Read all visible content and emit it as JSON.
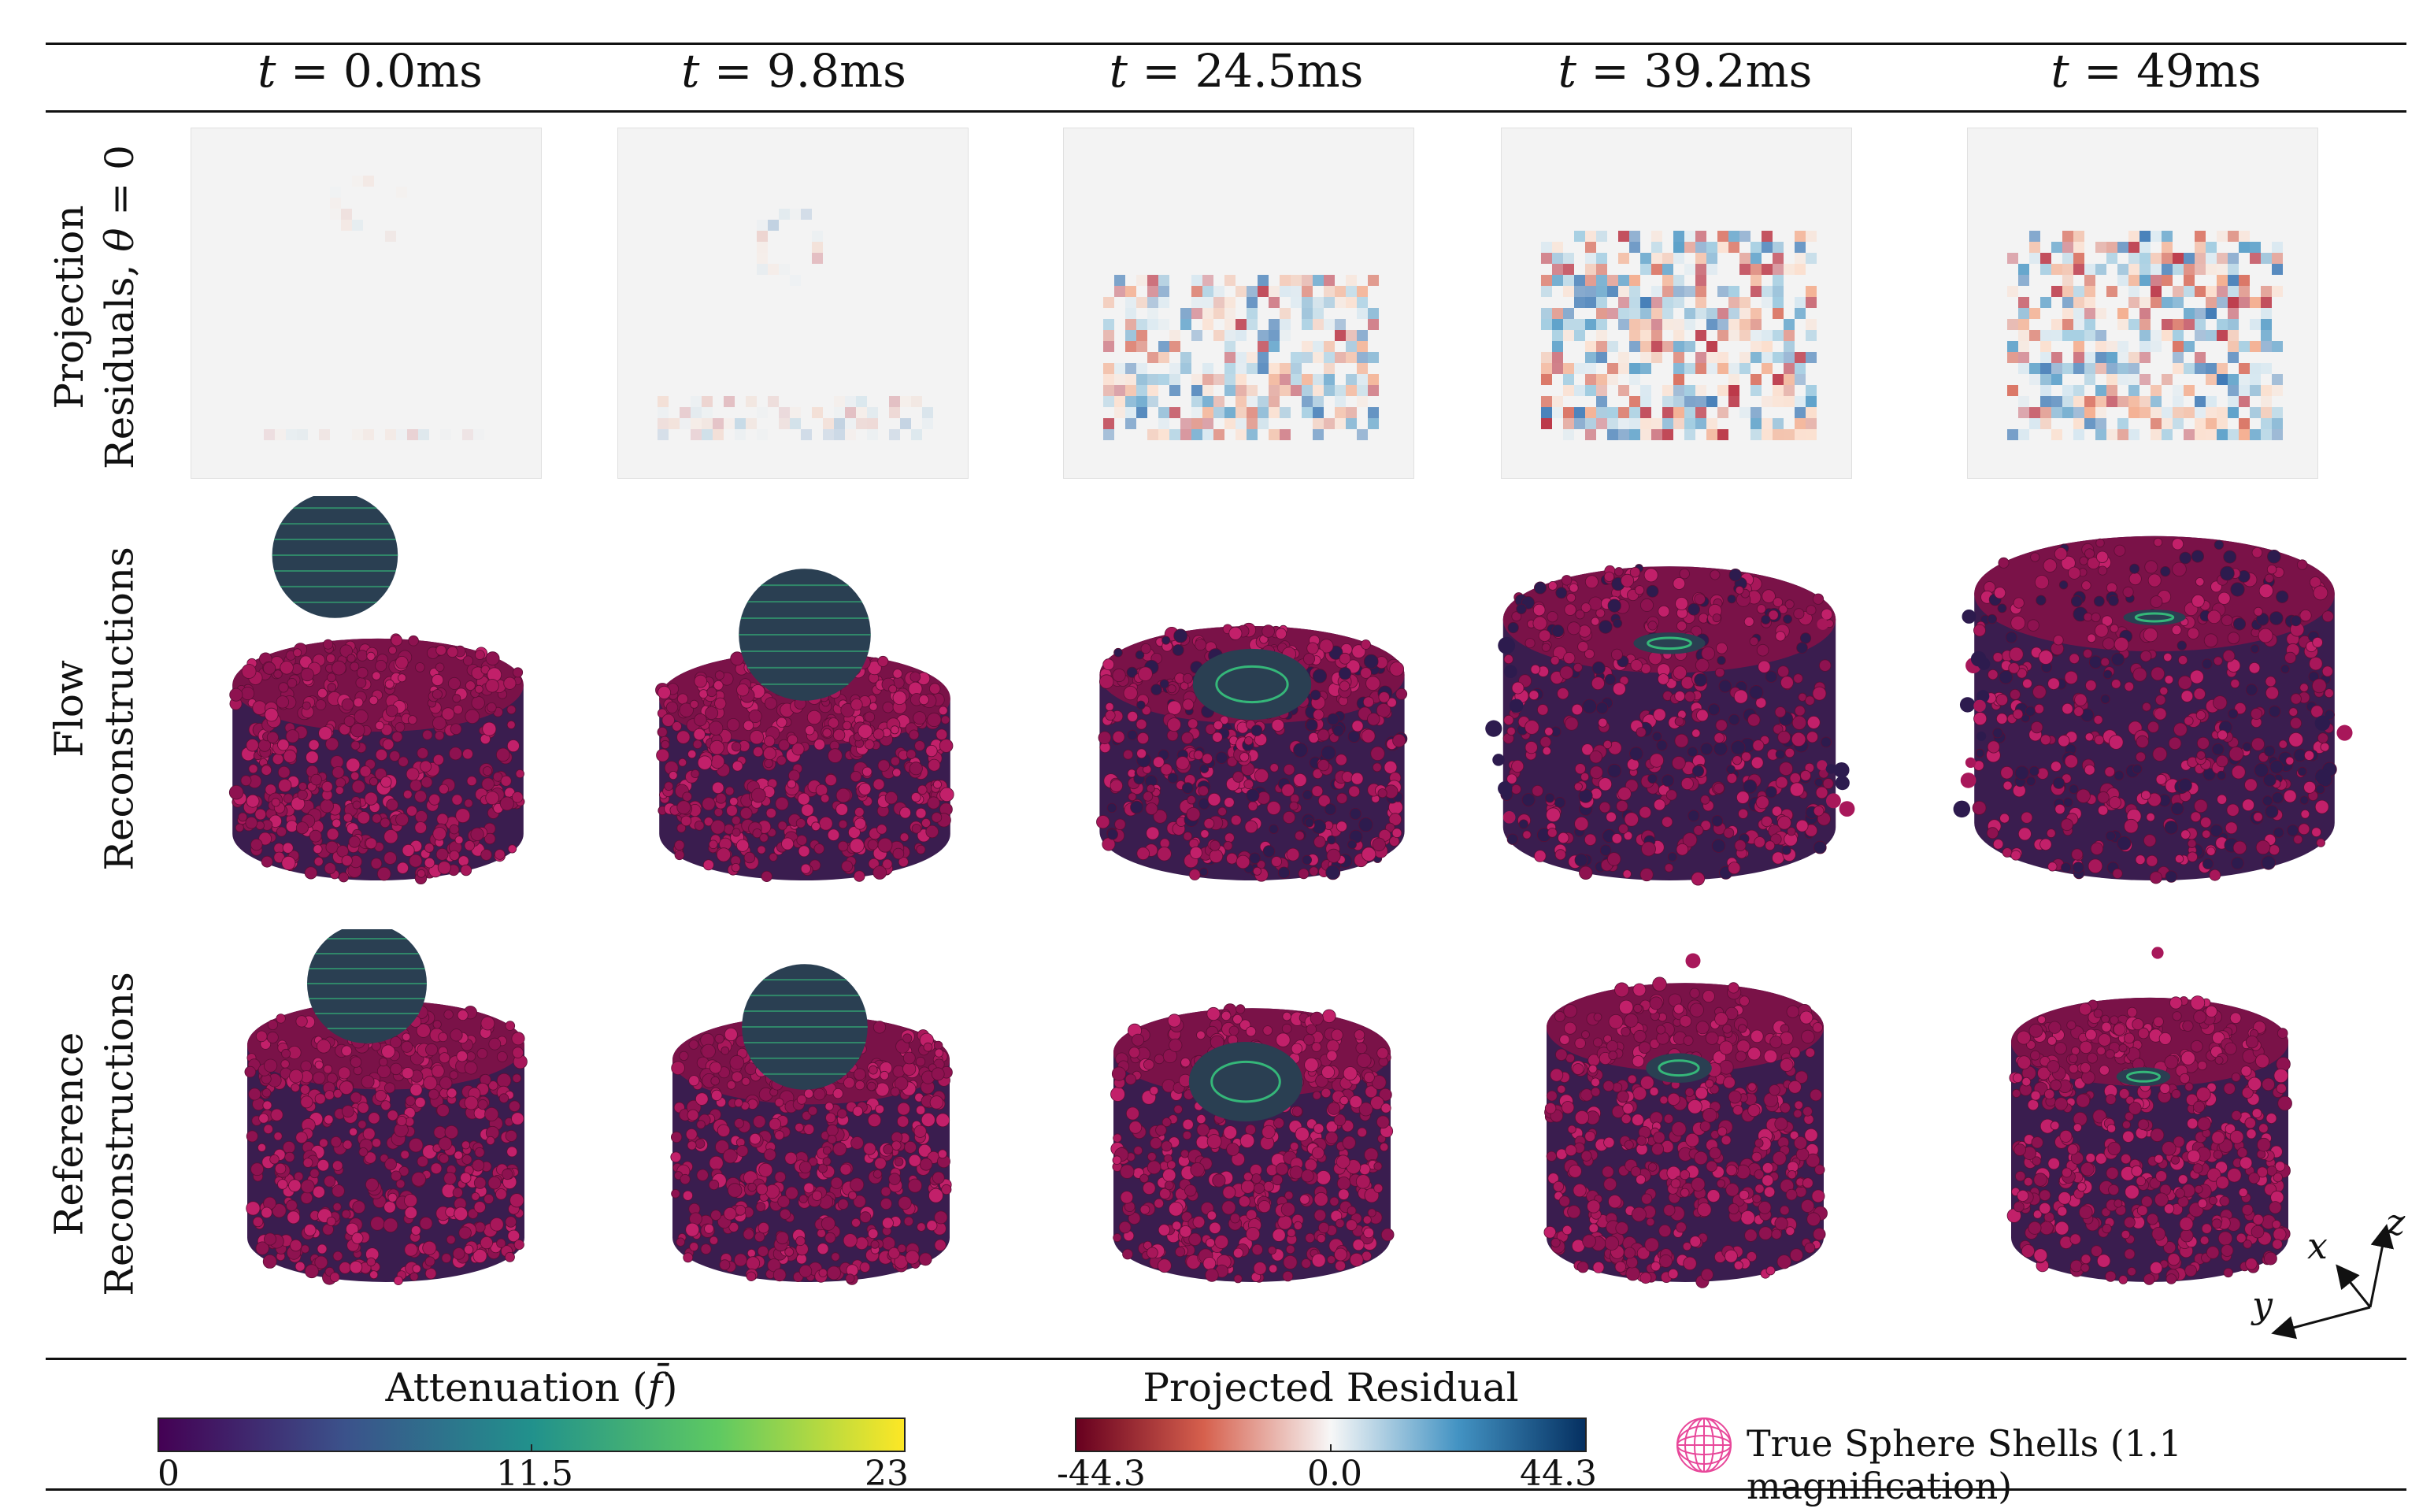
{
  "columns": [
    {
      "var": "t",
      "value": "= 0.0ms"
    },
    {
      "var": "t",
      "value": "= 9.8ms"
    },
    {
      "var": "t",
      "value": "= 24.5ms"
    },
    {
      "var": "t",
      "value": "= 39.2ms"
    },
    {
      "var": "t",
      "value": "= 49ms"
    }
  ],
  "rows": {
    "projection": {
      "line1": "Projection",
      "line2_prefix": "Residuals, ",
      "line2_var": "θ",
      "line2_suffix": " = 0"
    },
    "flow": {
      "line1": "Flow",
      "line2": "Reconstructions"
    },
    "reference": {
      "line1": "Reference",
      "line2": "Reconstructions"
    }
  },
  "colorbars": {
    "attenuation": {
      "title_prefix": "Attenuation (",
      "title_var": "f̄",
      "title_suffix": ")",
      "ticks": [
        "0",
        "11.5",
        "23"
      ],
      "colors": [
        "#440154",
        "#3b528b",
        "#21918c",
        "#5ec962",
        "#fde725"
      ]
    },
    "residual": {
      "title": "Projected Residual",
      "ticks": [
        "-44.3",
        "0.0",
        "44.3"
      ],
      "colors": [
        "#67001f",
        "#d6604d",
        "#f7f7f7",
        "#4393c3",
        "#053061"
      ]
    }
  },
  "legend": {
    "label": "True Sphere Shells (1.1 magnification)",
    "color": "#e8479a"
  },
  "axes": {
    "x": "x",
    "y": "y",
    "z": "z"
  },
  "colors": {
    "pack": "#9a1450",
    "pack_dark": "#3a1d4f",
    "sphere": "#2a3f52",
    "sphere_green": "#35b779"
  }
}
